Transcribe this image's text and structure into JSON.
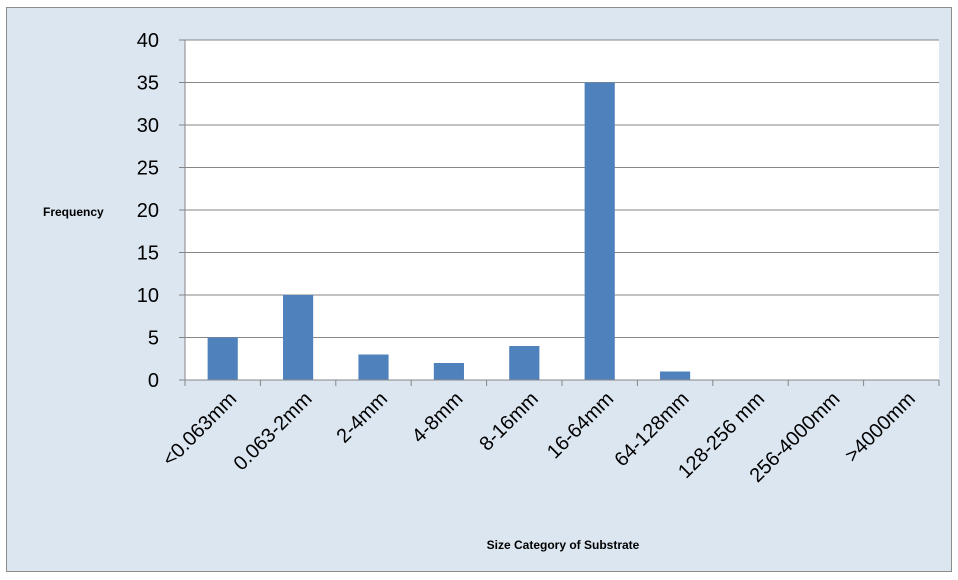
{
  "chart_data": {
    "type": "bar",
    "title": "",
    "xlabel": "Size Category of Substrate",
    "ylabel": "Frequency",
    "categories": [
      "<0.063mm",
      "0.063-2mm",
      "2-4mm",
      "4-8mm",
      "8-16mm",
      "16-64mm",
      "64-128mm",
      "128-256 mm",
      "256-4000mm",
      ">4000mm"
    ],
    "values": [
      5,
      10,
      3,
      2,
      4,
      35,
      1,
      0,
      0,
      0
    ],
    "ylim": [
      0,
      40
    ],
    "yticks": [
      0,
      5,
      10,
      15,
      20,
      25,
      30,
      35,
      40
    ],
    "grid": "horizontal",
    "legend": "none",
    "colors": {
      "bar": "#4f81bd",
      "background": "#dce6f1",
      "plot_background": "#ffffff",
      "grid": "#868686"
    }
  }
}
